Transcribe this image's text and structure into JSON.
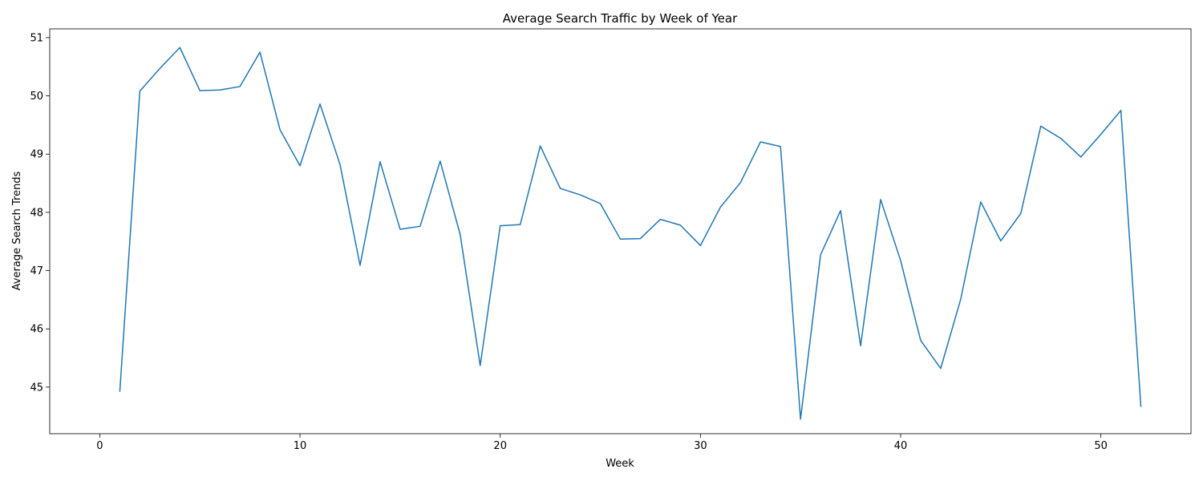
{
  "chart_data": {
    "type": "line",
    "title": "Average Search Traffic by Week of Year",
    "xlabel": "Week",
    "ylabel": "Average Search Trends",
    "xlim": [
      -2.5,
      54.5
    ],
    "ylim": [
      44.2,
      51.15
    ],
    "xticks": [
      0,
      10,
      20,
      30,
      40,
      50
    ],
    "yticks": [
      45,
      46,
      47,
      48,
      49,
      50,
      51
    ],
    "grid": false,
    "series": [
      {
        "color": "#1f77b4",
        "x": [
          1,
          2,
          3,
          4,
          5,
          6,
          7,
          8,
          9,
          10,
          11,
          12,
          13,
          14,
          15,
          16,
          17,
          18,
          19,
          20,
          21,
          22,
          23,
          24,
          25,
          26,
          27,
          28,
          29,
          30,
          31,
          32,
          33,
          34,
          35,
          36,
          37,
          38,
          39,
          40,
          41,
          42,
          43,
          44,
          45,
          46,
          47,
          48,
          49,
          50,
          51,
          52
        ],
        "y": [
          44.92,
          50.08,
          50.47,
          50.83,
          50.09,
          50.1,
          50.16,
          50.75,
          49.42,
          48.8,
          49.86,
          48.82,
          47.09,
          48.87,
          47.71,
          47.76,
          48.88,
          47.62,
          45.37,
          47.77,
          47.79,
          49.14,
          48.41,
          48.3,
          48.15,
          47.54,
          47.55,
          47.88,
          47.78,
          47.43,
          48.09,
          48.51,
          49.21,
          49.13,
          44.45,
          47.27,
          48.03,
          45.71,
          48.22,
          47.17,
          45.8,
          45.32,
          46.51,
          48.18,
          47.51,
          47.98,
          49.48,
          49.27,
          48.95,
          49.34,
          49.75,
          44.66
        ]
      }
    ]
  }
}
